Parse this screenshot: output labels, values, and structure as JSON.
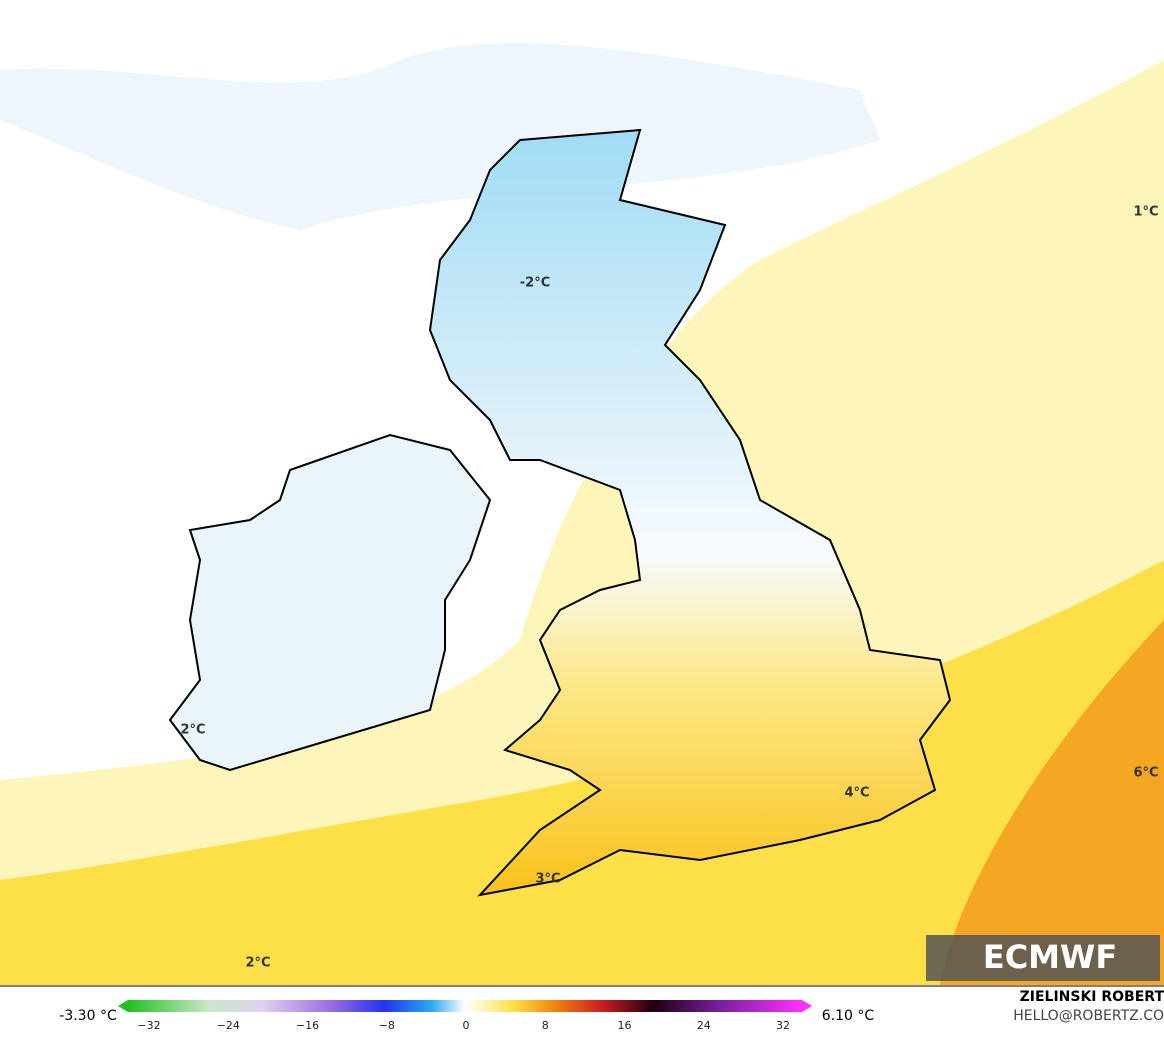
{
  "map_labels": [
    "1°C",
    "-2°C",
    "2°C",
    "4°C",
    "6°C",
    "3°C",
    "2°C"
  ],
  "colorbar": {
    "min_label": "-3.30 °C",
    "max_label": "6.10 °C",
    "ticks": [
      "−32",
      "−24",
      "−16",
      "−8",
      "0",
      "8",
      "16",
      "24",
      "32"
    ]
  },
  "credit": {
    "name": "ZIELINSKI ROBERT",
    "email": "HELLO@ROBERTZ.CO"
  },
  "logo": "ECMWF"
}
